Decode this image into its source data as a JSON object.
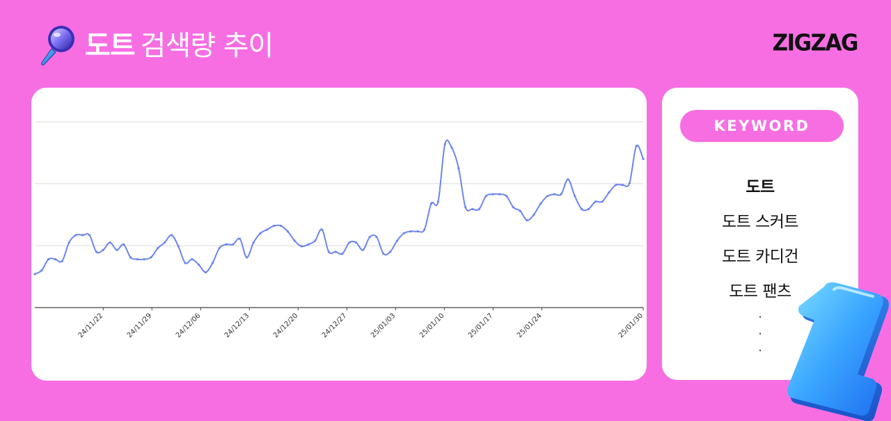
{
  "header": {
    "title_strong": "도트",
    "title_light": "검색량 추이",
    "icon": "magnifying-glass-icon"
  },
  "brand": {
    "logo_text": "ZIGZAG"
  },
  "colors": {
    "background": "#f76ee3",
    "card": "#ffffff",
    "line": "#6b85ee",
    "axis": "#444444",
    "grid": "#e6e6e6"
  },
  "keywords": {
    "heading": "KEYWORD",
    "items": [
      {
        "label": "도트",
        "active": true
      },
      {
        "label": "도트 스커트",
        "active": false
      },
      {
        "label": "도트 카디건",
        "active": false
      },
      {
        "label": "도트 팬츠",
        "active": false
      }
    ],
    "more": [
      "·",
      "·",
      "·"
    ]
  },
  "chart_data": {
    "type": "line",
    "title": "",
    "xlabel": "",
    "ylabel": "",
    "x_start": "24/11/12",
    "x_end": "25/01/30",
    "ticks": [
      "24/11/22",
      "24/11/29",
      "24/12/06",
      "24/12/13",
      "24/12/20",
      "24/12/27",
      "25/01/03",
      "25/01/10",
      "25/01/17",
      "25/01/24",
      "25/01/30"
    ],
    "ylim": [
      0,
      100
    ],
    "y_gridlines": [
      33.3,
      66.7,
      100
    ],
    "y_tick_labels_shown": false,
    "series": [
      {
        "values": [
          18,
          20,
          26,
          26,
          25,
          35,
          39,
          39,
          39,
          30,
          31,
          35,
          31,
          34,
          27,
          26,
          26,
          27,
          32,
          35,
          39,
          33,
          24,
          26,
          23,
          19,
          24,
          32,
          34,
          34,
          37,
          27,
          35,
          40,
          42,
          44,
          44,
          41,
          36,
          33,
          34,
          36,
          42,
          30,
          30,
          29,
          35,
          35,
          31,
          38,
          38,
          29,
          30,
          36,
          40,
          41,
          41,
          42,
          56,
          57,
          88,
          86,
          75,
          54,
          53,
          53,
          60,
          61,
          61,
          60,
          54,
          52,
          47,
          50,
          56,
          60,
          61,
          61,
          69,
          60,
          53,
          53,
          57,
          57,
          62,
          66,
          66,
          67,
          87,
          80
        ]
      }
    ],
    "grid": true,
    "legend": "none"
  }
}
